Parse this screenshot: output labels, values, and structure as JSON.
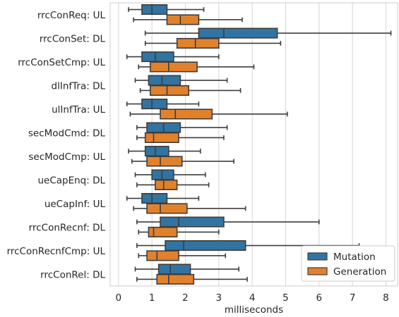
{
  "chart_data": {
    "type": "boxplot",
    "xlabel": "milliseconds",
    "xlim": [
      -0.25,
      8.35
    ],
    "xticks": [
      0,
      1,
      2,
      3,
      4,
      5,
      6,
      7,
      8
    ],
    "grid": "vertical",
    "legend_position": "bottom-right",
    "categories": [
      "rrcConReq: UL",
      "rrcConSet: DL",
      "rrcConSetCmp: UL",
      "dlInfTra: DL",
      "ulInfTra: UL",
      "secModCmd: DL",
      "secModCmp: UL",
      "ueCapEnq: DL",
      "ueCapInf: UL",
      "rrcConRecnf: DL",
      "rrcConRecnfCmp: UL",
      "rrcConRel: DL"
    ],
    "series": [
      {
        "name": "Mutation",
        "color": "#3274a1",
        "boxes": [
          {
            "min": 0.3,
            "q1": 0.7,
            "median": 1.0,
            "q3": 1.45,
            "max": 2.55
          },
          {
            "min": 0.8,
            "q1": 2.4,
            "median": 3.15,
            "q3": 4.75,
            "max": 8.15
          },
          {
            "min": 0.25,
            "q1": 0.7,
            "median": 1.1,
            "q3": 1.65,
            "max": 3.0
          },
          {
            "min": 0.5,
            "q1": 0.9,
            "median": 1.3,
            "q3": 1.85,
            "max": 3.25
          },
          {
            "min": 0.25,
            "q1": 0.7,
            "median": 1.0,
            "q3": 1.45,
            "max": 2.4
          },
          {
            "min": 0.55,
            "q1": 0.85,
            "median": 1.35,
            "q3": 1.85,
            "max": 3.25
          },
          {
            "min": 0.3,
            "q1": 0.8,
            "median": 1.1,
            "q3": 1.5,
            "max": 2.45
          },
          {
            "min": 0.5,
            "q1": 1.0,
            "median": 1.3,
            "q3": 1.65,
            "max": 2.6
          },
          {
            "min": 0.25,
            "q1": 0.7,
            "median": 1.0,
            "q3": 1.45,
            "max": 2.4
          },
          {
            "min": 0.55,
            "q1": 1.25,
            "median": 1.8,
            "q3": 3.15,
            "max": 6.0
          },
          {
            "min": 0.55,
            "q1": 1.4,
            "median": 1.95,
            "q3": 3.8,
            "max": 7.2
          },
          {
            "min": 0.5,
            "q1": 1.2,
            "median": 1.55,
            "q3": 2.15,
            "max": 3.6
          }
        ]
      },
      {
        "name": "Generation",
        "color": "#e1812c",
        "boxes": [
          {
            "min": 0.45,
            "q1": 1.45,
            "median": 1.85,
            "q3": 2.4,
            "max": 3.7
          },
          {
            "min": 0.8,
            "q1": 1.75,
            "median": 2.3,
            "q3": 3.0,
            "max": 4.85
          },
          {
            "min": 0.6,
            "q1": 0.95,
            "median": 1.5,
            "q3": 2.35,
            "max": 4.05
          },
          {
            "min": 0.65,
            "q1": 0.95,
            "median": 1.45,
            "q3": 2.1,
            "max": 3.65
          },
          {
            "min": 0.35,
            "q1": 1.25,
            "median": 1.7,
            "q3": 2.8,
            "max": 5.05
          },
          {
            "min": 0.55,
            "q1": 0.8,
            "median": 1.05,
            "q3": 1.8,
            "max": 3.15
          },
          {
            "min": 0.4,
            "q1": 0.85,
            "median": 1.25,
            "q3": 1.9,
            "max": 3.45
          },
          {
            "min": 0.55,
            "q1": 1.1,
            "median": 1.35,
            "q3": 1.75,
            "max": 2.7
          },
          {
            "min": 0.45,
            "q1": 0.85,
            "median": 1.25,
            "q3": 2.05,
            "max": 3.8
          },
          {
            "min": 0.6,
            "q1": 0.9,
            "median": 1.05,
            "q3": 1.75,
            "max": 3.0
          },
          {
            "min": 0.6,
            "q1": 0.85,
            "median": 1.15,
            "q3": 1.8,
            "max": 3.2
          },
          {
            "min": 0.55,
            "q1": 1.15,
            "median": 1.5,
            "q3": 2.25,
            "max": 3.85
          }
        ]
      }
    ]
  }
}
